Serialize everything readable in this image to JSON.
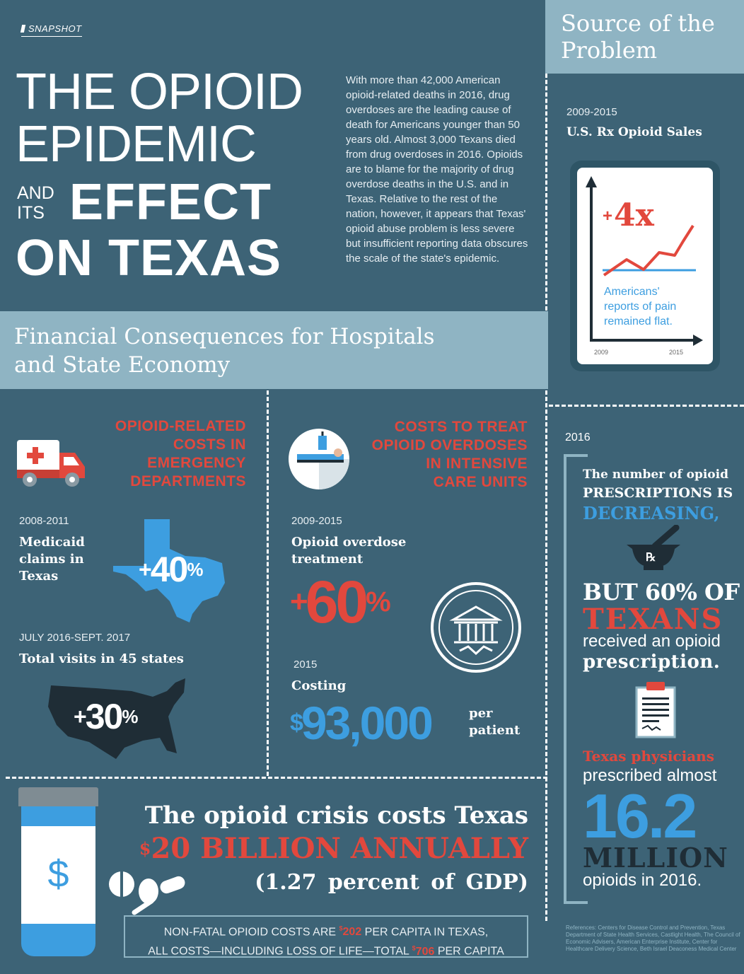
{
  "header": {
    "snapshot": "SNAPSHOT",
    "title_line1": "THE OPIOID",
    "title_line2": "EPIDEMIC",
    "title_and": "AND",
    "title_its": "ITS",
    "title_effect": "EFFECT",
    "title_on_texas": "ON TEXAS",
    "intro": "With more than 42,000 American opioid-related deaths in 2016, drug overdoses are the leading cause of death for Americans younger than 50 years old. Almost 3,000 Texans died from drug overdoses in 2016. Opioids are to blame for the majority of drug overdose deaths in the U.S. and in Texas. Relative to the rest of the nation, however, it appears that Texas' opioid abuse problem is less severe but insufficient reporting data obscures the scale of the state's epidemic."
  },
  "source": {
    "title_line1": "Source of the",
    "title_line2": "Problem",
    "years": "2009-2015",
    "heading": "U.S. Rx Opioid Sales",
    "multiplier_plus": "+",
    "multiplier": "4x",
    "note_line1": "Americans'",
    "note_line2": "reports of pain",
    "note_line3": "remained flat.",
    "axis_start": "2009",
    "axis_end": "2015"
  },
  "financial": {
    "title_line1": "Financial Consequences for Hospitals",
    "title_line2": "and State Economy"
  },
  "emergency": {
    "heading_lines": [
      "OPIOID-RELATED",
      "COSTS IN",
      "EMERGENCY",
      "DEPARTMENTS"
    ],
    "years1": "2008-2011",
    "label1_lines": [
      "Medicaid",
      "claims in",
      "Texas"
    ],
    "stat1_plus": "+",
    "stat1": "40",
    "stat1_unit": "%",
    "years2": "JULY 2016-SEPT. 2017",
    "label2": "Total visits in 45 states",
    "stat2_plus": "+",
    "stat2": "30",
    "stat2_unit": "%"
  },
  "icu": {
    "heading_lines": [
      "COSTS TO TREAT",
      "OPIOID OVERDOSES",
      "IN INTENSIVE",
      "CARE UNITS"
    ],
    "years1": "2009-2015",
    "label1_lines": [
      "Opioid overdose",
      "treatment"
    ],
    "stat1_plus": "+",
    "stat1": "60",
    "stat1_unit": "%",
    "years2": "2015",
    "label2": "Costing",
    "cost_symbol": "$",
    "cost": "93,000",
    "per_line1": "per",
    "per_line2": "patient"
  },
  "prescriptions": {
    "year": "2016",
    "line1": "The number of opioid",
    "line2": "PRESCRIPTIONS IS",
    "line3": "DECREASING,",
    "rx_symbol": "℞",
    "line4": "BUT 60% OF",
    "line5": "TEXANS",
    "line6": "received an opioid",
    "line7": "prescription.",
    "line8": "Texas physicians",
    "line9": "prescribed almost",
    "big_number": "16.2",
    "big_unit": "MILLION",
    "line10": "opioids in 2016."
  },
  "references": "References: Centers for Disease Control and Prevention, Texas Department of State Health Services, Castlight Health, The Council of Economic Advisers, American Enterprise Institute, Center for Healthcare Delivery Science, Beth Israel Deaconess Medical Center",
  "economy": {
    "bottle_symbol": "$",
    "line1": "The opioid crisis costs Texas",
    "line2_symbol": "$",
    "line2": "20 BILLION ANNUALLY",
    "line3": "(1.27 percent of GDP)",
    "box_part1": "NON-FATAL OPIOID COSTS ARE ",
    "box_sym1": "$",
    "box_num1": "202",
    "box_part2": " PER CAPITA IN TEXAS,",
    "box_part3": "ALL COSTS—INCLUDING LOSS OF LIFE—TOTAL ",
    "box_sym2": "$",
    "box_num2": "706",
    "box_part4": " PER CAPITA"
  },
  "colors": {
    "background": "#3d6376",
    "band": "#8fb4c3",
    "red": "#e2483d",
    "blue": "#3d9ee0",
    "dark": "#1f2d36"
  },
  "icons": [
    "ambulance-icon",
    "icu-bed-icon",
    "texas-map-icon",
    "usa-map-icon",
    "hospital-seal-icon",
    "mortar-pestle-icon",
    "prescription-pad-icon",
    "pill-bottle-icon",
    "pills-icon"
  ]
}
